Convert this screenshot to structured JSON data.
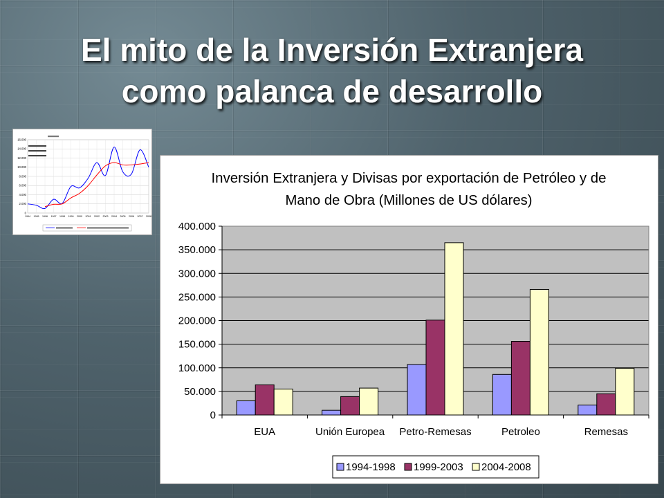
{
  "slide": {
    "title": [
      "El mito de la Inversión Extranjera",
      "como palanca de desarrollo"
    ]
  },
  "colors": {
    "title_text": "#ffffff",
    "background": "#4b5e67",
    "plot_area": "#c0c0c0"
  },
  "chart_data": [
    {
      "type": "bar",
      "title": [
        "Inversión Extranjera y Divisas por exportación de Petróleo y de",
        "Mano de Obra (Millones de US dólares)"
      ],
      "categories": [
        "EUA",
        "Unión Europea",
        "Petro-Remesas",
        "Petroleo",
        "Remesas"
      ],
      "series": [
        {
          "name": "1994-1998",
          "color": "#9999ff",
          "values": [
            30000,
            10000,
            107000,
            86000,
            21000
          ]
        },
        {
          "name": "1999-2003",
          "color": "#993366",
          "values": [
            64000,
            39000,
            201000,
            156000,
            45000
          ]
        },
        {
          "name": "2004-2008",
          "color": "#ffffcc",
          "values": [
            55000,
            57000,
            365000,
            266000,
            99000
          ]
        }
      ],
      "ylim": [
        0,
        400000
      ],
      "yticks": [
        "0",
        "50.000",
        "100.000",
        "150.000",
        "200.000",
        "250.000",
        "300.000",
        "350.000",
        "400.000"
      ],
      "grid": true,
      "legend": "bottom"
    },
    {
      "type": "line",
      "smooth": true,
      "x": [
        1994,
        1995,
        1996,
        1997,
        1998,
        1999,
        2000,
        2001,
        2002,
        2003,
        2004,
        2005,
        2006,
        2007,
        2008
      ],
      "xticks": [
        "1994",
        "1995",
        "1996",
        "1997",
        "1998",
        "1999",
        "2000",
        "2001",
        "2002",
        "2003",
        "2004",
        "2005",
        "2006",
        "2007",
        "2008"
      ],
      "ylim": [
        0,
        16000
      ],
      "yticks": [
        "0",
        "2.000",
        "4.000",
        "6.000",
        "8.000",
        "10.000",
        "12.000",
        "14.000",
        "16.000"
      ],
      "series": [
        {
          "color": "#0000ff",
          "values": [
            2000,
            1700,
            1000,
            3000,
            2100,
            5800,
            5500,
            7600,
            11000,
            8200,
            14400,
            9000,
            8500,
            13800,
            10000
          ]
        },
        {
          "color": "#ff0000",
          "values": [
            null,
            null,
            1400,
            1900,
            2000,
            3300,
            4300,
            6000,
            8300,
            10300,
            11000,
            10500,
            10500,
            10700,
            11000
          ]
        }
      ],
      "grid": true,
      "legend": "bottom"
    }
  ]
}
